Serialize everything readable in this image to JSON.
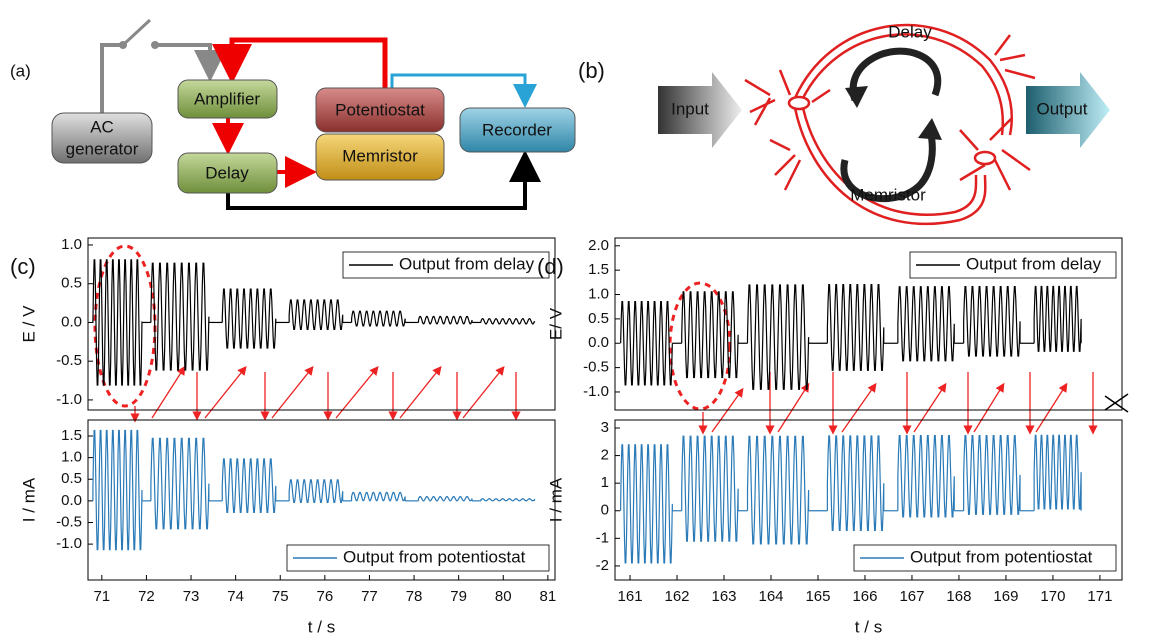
{
  "diagram_a": {
    "label": "(a)",
    "ac_generator": [
      "AC",
      "generator"
    ],
    "amplifier": "Amplifier",
    "delay": "Delay",
    "potentiostat": "Potentiostat",
    "memristor": "Memristor",
    "recorder": "Recorder"
  },
  "diagram_b": {
    "label": "(b)",
    "input": "Input",
    "output": "Output",
    "delay": "Delay",
    "memristor": "Memristor"
  },
  "chart_data": [
    {
      "type": "line",
      "panel_label": "(c)",
      "ylabel": "E / V",
      "xlim": [
        70.69,
        81.16
      ],
      "ylim": [
        -1.13,
        1.09
      ],
      "yticks": [
        {
          "value": -1,
          "label": "-1.0"
        },
        -0.5,
        {
          "value": 0,
          "label": "0.0"
        },
        0.5,
        {
          "value": 1,
          "label": "1.0"
        }
      ],
      "legend": "top-right",
      "series": [
        {
          "name": "Output from delay",
          "color": "#000000",
          "bursts": [
            {
              "start": 70.8,
              "end": 71.9,
              "high": 0.85,
              "low": -0.85
            },
            {
              "start": 72.1,
              "end": 73.4,
              "high": 0.8,
              "low": -0.65
            },
            {
              "start": 73.7,
              "end": 74.9,
              "high": 0.45,
              "low": -0.35
            },
            {
              "start": 75.2,
              "end": 76.4,
              "high": 0.3,
              "low": -0.1
            },
            {
              "start": 76.6,
              "end": 77.8,
              "high": 0.15,
              "low": -0.05
            },
            {
              "start": 78.1,
              "end": 79.3,
              "high": 0.08,
              "low": -0.02
            },
            {
              "start": 79.5,
              "end": 80.7,
              "high": 0.05,
              "low": -0.02
            }
          ]
        }
      ]
    },
    {
      "type": "line",
      "xlabel": "t / s",
      "ylabel": "I / mA",
      "xlim": [
        70.69,
        81.16
      ],
      "ylim": [
        -1.83,
        1.87
      ],
      "xticks": [
        71,
        72,
        73,
        74,
        75,
        76,
        77,
        78,
        79,
        80,
        81
      ],
      "yticks": [
        {
          "value": -1,
          "label": "-1.0"
        },
        -0.5,
        {
          "value": 0,
          "label": "0.0"
        },
        0.5,
        {
          "value": 1,
          "label": "1.0"
        },
        1.5
      ],
      "legend": "bottom-right",
      "series": [
        {
          "name": "Output from potentiostat",
          "color": "#2a7ab8",
          "bursts": [
            {
              "start": 70.8,
              "end": 71.9,
              "high": 1.7,
              "low": -1.2
            },
            {
              "start": 72.1,
              "end": 73.4,
              "high": 1.5,
              "low": -0.7
            },
            {
              "start": 73.7,
              "end": 74.9,
              "high": 1.0,
              "low": -0.3
            },
            {
              "start": 75.2,
              "end": 76.4,
              "high": 0.5,
              "low": -0.05
            },
            {
              "start": 76.6,
              "end": 77.8,
              "high": 0.2,
              "low": 0
            },
            {
              "start": 78.1,
              "end": 79.3,
              "high": 0.1,
              "low": 0
            },
            {
              "start": 79.5,
              "end": 80.7,
              "high": 0.05,
              "low": 0
            }
          ]
        }
      ]
    },
    {
      "type": "line",
      "panel_label": "(d)",
      "ylabel": "E/ V",
      "xlim": [
        160.68,
        171.47
      ],
      "ylim": [
        -1.37,
        2.16
      ],
      "yticks": [
        {
          "value": -1,
          "label": "-1.0"
        },
        -0.5,
        {
          "value": 0,
          "label": "0.0"
        },
        0.5,
        {
          "value": 1,
          "label": "1.0"
        },
        1.5,
        {
          "value": 2,
          "label": "2.0"
        }
      ],
      "legend": "top-right",
      "series": [
        {
          "name": "Output from delay",
          "color": "#000000",
          "bursts": [
            {
              "start": 160.8,
              "end": 161.9,
              "high": 0.9,
              "low": -0.9
            },
            {
              "start": 162.1,
              "end": 163.3,
              "high": 1.1,
              "low": -0.75
            },
            {
              "start": 163.5,
              "end": 164.8,
              "high": 1.25,
              "low": -1.0
            },
            {
              "start": 165.2,
              "end": 166.4,
              "high": 1.25,
              "low": -0.6
            },
            {
              "start": 166.7,
              "end": 167.9,
              "high": 1.2,
              "low": -0.4
            },
            {
              "start": 168.1,
              "end": 169.3,
              "high": 1.2,
              "low": -0.3
            },
            {
              "start": 169.6,
              "end": 170.6,
              "high": 1.2,
              "low": -0.2
            }
          ]
        }
      ]
    },
    {
      "type": "line",
      "xlabel": "t / s",
      "ylabel": "I / mA",
      "xlim": [
        160.68,
        171.47
      ],
      "ylim": [
        -2.51,
        3.29
      ],
      "xticks": [
        161,
        162,
        163,
        164,
        165,
        166,
        167,
        168,
        169,
        170,
        171
      ],
      "yticks": [
        -2,
        -1,
        0,
        1,
        2,
        3
      ],
      "legend": "bottom-right",
      "series": [
        {
          "name": "Output from potentiostat",
          "color": "#2a7ab8",
          "bursts": [
            {
              "start": 160.8,
              "end": 161.9,
              "high": 2.5,
              "low": -2.0
            },
            {
              "start": 162.1,
              "end": 163.3,
              "high": 2.8,
              "low": -1.2
            },
            {
              "start": 163.5,
              "end": 164.8,
              "high": 2.8,
              "low": -1.3
            },
            {
              "start": 165.2,
              "end": 166.4,
              "high": 2.8,
              "low": -0.8
            },
            {
              "start": 166.7,
              "end": 167.9,
              "high": 2.8,
              "low": -0.3
            },
            {
              "start": 168.1,
              "end": 169.3,
              "high": 2.8,
              "low": -0.2
            },
            {
              "start": 169.6,
              "end": 170.6,
              "high": 2.8,
              "low": 0
            }
          ]
        }
      ]
    }
  ]
}
